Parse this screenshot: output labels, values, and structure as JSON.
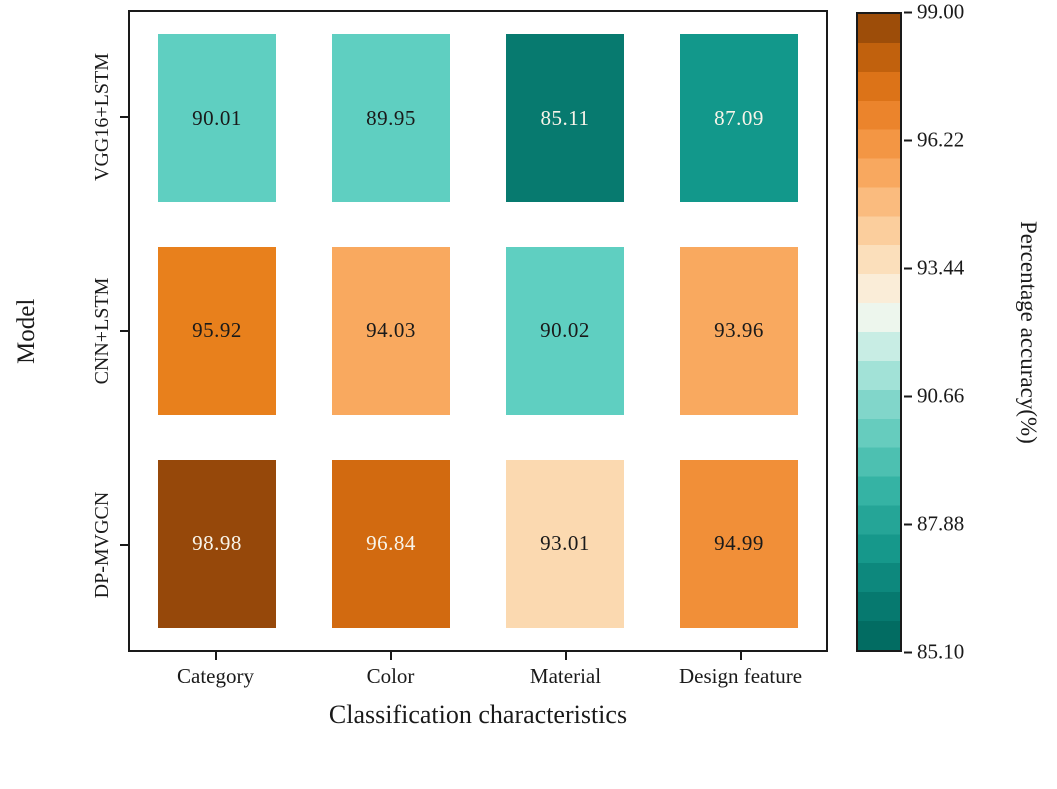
{
  "chart_data": {
    "type": "heatmap",
    "title": "",
    "xlabel": "Classification characteristics",
    "ylabel": "Model",
    "columns": [
      "Category",
      "Color",
      "Material",
      "Design feature"
    ],
    "rows": [
      "VGG16+LSTM",
      "CNN+LSTM",
      "DP-MVGCN"
    ],
    "values": [
      [
        90.01,
        89.95,
        85.11,
        87.09
      ],
      [
        95.92,
        94.03,
        90.02,
        93.96
      ],
      [
        98.98,
        96.84,
        93.01,
        94.99
      ]
    ],
    "cells": [
      [
        {
          "value": "90.01",
          "color": "#5fcfc1",
          "text": "#1a1a1a"
        },
        {
          "value": "89.95",
          "color": "#5fcfc1",
          "text": "#1a1a1a"
        },
        {
          "value": "85.11",
          "color": "#077a6f",
          "text": "#f8f4e9"
        },
        {
          "value": "87.09",
          "color": "#12988b",
          "text": "#f8f4e9"
        }
      ],
      [
        {
          "value": "95.92",
          "color": "#e8801c",
          "text": "#1a1a1a"
        },
        {
          "value": "94.03",
          "color": "#f9a95f",
          "text": "#1a1a1a"
        },
        {
          "value": "90.02",
          "color": "#5fcfc1",
          "text": "#1a1a1a"
        },
        {
          "value": "93.96",
          "color": "#f9a95f",
          "text": "#1a1a1a"
        }
      ],
      [
        {
          "value": "98.98",
          "color": "#96480a",
          "text": "#f8f4e9"
        },
        {
          "value": "96.84",
          "color": "#d26a10",
          "text": "#f8f4e9"
        },
        {
          "value": "93.01",
          "color": "#fbd9b0",
          "text": "#1a1a1a"
        },
        {
          "value": "94.99",
          "color": "#f18f38",
          "text": "#1a1a1a"
        }
      ]
    ],
    "colorbar": {
      "label": "Percentage accuracy(%)",
      "min": 85.1,
      "max": 99.0,
      "ticks": [
        "99.00",
        "96.22",
        "93.44",
        "90.66",
        "87.88",
        "85.10"
      ],
      "segments": 22,
      "stops": [
        {
          "t": 0.0,
          "c": "#00655c"
        },
        {
          "t": 0.08,
          "c": "#077d72"
        },
        {
          "t": 0.16,
          "c": "#16988b"
        },
        {
          "t": 0.25,
          "c": "#35b3a4"
        },
        {
          "t": 0.33,
          "c": "#5fc9bb"
        },
        {
          "t": 0.41,
          "c": "#8fdcd0"
        },
        {
          "t": 0.47,
          "c": "#c2ece2"
        },
        {
          "t": 0.52,
          "c": "#ecf6ee"
        },
        {
          "t": 0.56,
          "c": "#faf0dd"
        },
        {
          "t": 0.61,
          "c": "#fbe0bd"
        },
        {
          "t": 0.68,
          "c": "#fbc68f"
        },
        {
          "t": 0.75,
          "c": "#f8a85f"
        },
        {
          "t": 0.82,
          "c": "#f18c35"
        },
        {
          "t": 0.88,
          "c": "#e0761a"
        },
        {
          "t": 0.94,
          "c": "#bc5e0b"
        },
        {
          "t": 1.0,
          "c": "#8a4307"
        }
      ]
    }
  }
}
